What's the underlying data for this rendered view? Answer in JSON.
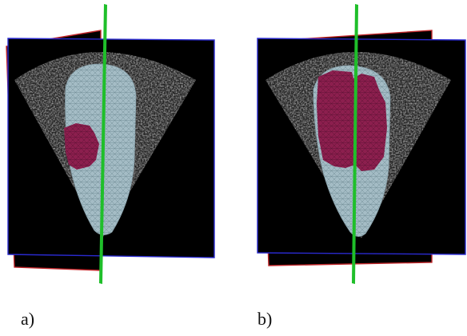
{
  "figure": {
    "panels": [
      {
        "label": "a)",
        "highlight": "small-left-region"
      },
      {
        "label": "b)",
        "highlight": "large-central-region"
      }
    ]
  },
  "colors": {
    "background": "#000000",
    "mesh": "#9fb8c2",
    "mesh_lines": "#6d8791",
    "highlight": "#8c1f4e",
    "plane_green": "#1fbf2a",
    "frame_red": "#c0262a",
    "frame_blue": "#2a2ad0"
  }
}
